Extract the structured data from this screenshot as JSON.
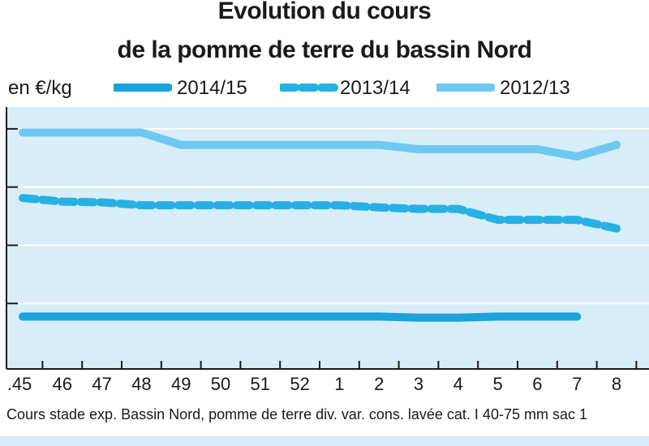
{
  "title_line_1": "Evolution du cours",
  "title_line_2": "de la pomme de terre du bassin Nord",
  "unit_label": "en €/kg",
  "footnote": "Cours stade exp. Bassin Nord, pomme de terre div. var. cons. lavée cat. I 40-75 mm sac 1",
  "colors": {
    "plot_background": "#d7edf8",
    "s2014": "#1aa3dc",
    "s2013": "#27b0e3",
    "s2012": "#6fc8ef",
    "grid": "#ffffff",
    "axis": "#1a1a1a"
  },
  "chart_data": {
    "type": "line",
    "title": "Evolution du cours de la pomme de terre du bassin Nord",
    "ylabel": "en €/kg",
    "xlabel": "",
    "categories": [
      ".45",
      "46",
      "47",
      "48",
      "49",
      "50",
      "51",
      "52",
      "1",
      "2",
      "3",
      "4",
      "5",
      "6",
      "7",
      "8"
    ],
    "y_tick_labels_visible": false,
    "grid": "horizontal",
    "legend_position": "top",
    "series": [
      {
        "name": "2014/15",
        "style": "solid",
        "color": "#1aa3dc",
        "values": [
          0.72,
          0.72,
          0.72,
          0.72,
          0.72,
          0.72,
          0.72,
          0.72,
          0.72,
          0.72,
          0.705,
          0.705,
          0.72,
          0.72,
          0.72,
          null
        ]
      },
      {
        "name": "2013/14",
        "style": "dashed",
        "color": "#27b0e3",
        "values": [
          2.35,
          2.3,
          2.29,
          2.25,
          2.25,
          2.25,
          2.25,
          2.25,
          2.25,
          2.22,
          2.2,
          2.2,
          2.05,
          2.05,
          2.05,
          1.93
        ]
      },
      {
        "name": "2012/13",
        "style": "solid",
        "color": "#6fc8ef",
        "values": [
          3.25,
          3.25,
          3.25,
          3.25,
          3.08,
          3.08,
          3.08,
          3.08,
          3.08,
          3.08,
          3.02,
          3.02,
          3.02,
          3.02,
          2.92,
          3.08
        ]
      }
    ],
    "ylim": [
      0,
      3.6
    ],
    "y_gridlines": [
      0.9,
      1.7,
      2.5,
      3.3
    ]
  }
}
